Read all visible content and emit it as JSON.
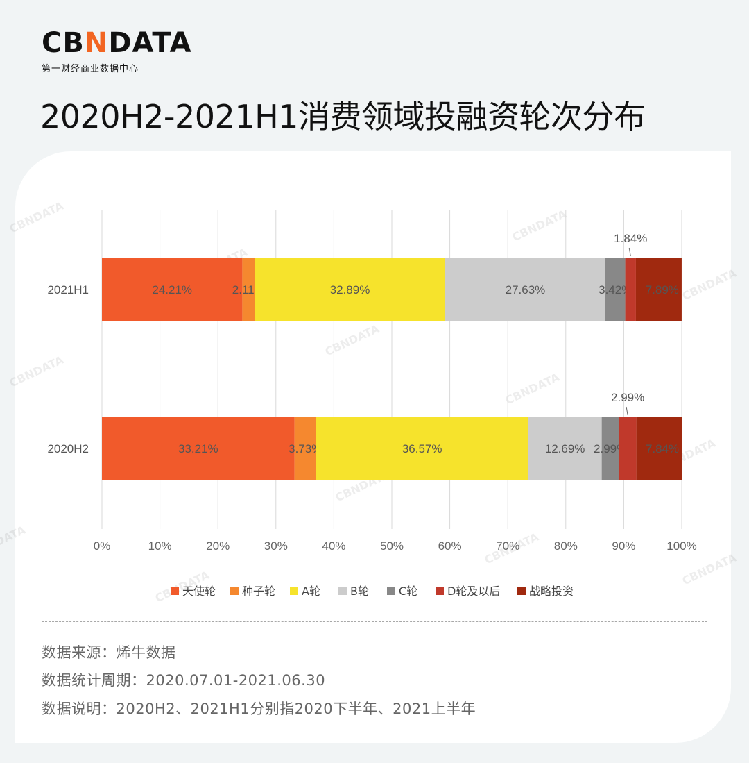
{
  "logo": {
    "word_main": "CB",
    "word_accent": "N",
    "word_rest": "DATA",
    "subtitle": "第一财经商业数据中心"
  },
  "title": "2020H2-2021H1消费领域投融资轮次分布",
  "chart_data": {
    "type": "bar",
    "orientation": "horizontal",
    "stacked": true,
    "categories": [
      "2021H1",
      "2020H2"
    ],
    "xlim": [
      0,
      100
    ],
    "xticks": [
      "0%",
      "10%",
      "20%",
      "30%",
      "40%",
      "50%",
      "60%",
      "70%",
      "80%",
      "90%",
      "100%"
    ],
    "grid": "vertical",
    "legend_position": "bottom",
    "series": [
      {
        "name": "天使轮",
        "color": "#f15a2b",
        "values": [
          24.21,
          33.21
        ],
        "labels": [
          "24.21%",
          "33.21%"
        ]
      },
      {
        "name": "种子轮",
        "color": "#f5882f",
        "values": [
          2.11,
          3.73
        ],
        "labels": [
          "2.11%",
          "3.73%"
        ]
      },
      {
        "name": "A轮",
        "color": "#f6e32c",
        "values": [
          32.89,
          36.57
        ],
        "labels": [
          "32.89%",
          "36.57%"
        ]
      },
      {
        "name": "B轮",
        "color": "#cccccc",
        "values": [
          27.63,
          12.69
        ],
        "labels": [
          "27.63%",
          "12.69%"
        ]
      },
      {
        "name": "C轮",
        "color": "#888888",
        "values": [
          3.42,
          2.99
        ],
        "labels": [
          "3.42%",
          "2.99%"
        ]
      },
      {
        "name": "D轮及以后",
        "color": "#c0392b",
        "values": [
          1.84,
          2.99
        ],
        "labels": [
          "1.84%",
          "2.99%"
        ],
        "callout": true
      },
      {
        "name": "战略投资",
        "color": "#a0290f",
        "values": [
          7.89,
          7.84
        ],
        "labels": [
          "7.89%",
          "7.84%"
        ]
      }
    ],
    "watermark": "CBNDATA"
  },
  "footer": {
    "source": "数据来源：烯牛数据",
    "period": "数据统计周期：2020.07.01-2021.06.30",
    "explain": "数据说明：2020H2、2021H1分别指2020下半年、2021上半年"
  }
}
